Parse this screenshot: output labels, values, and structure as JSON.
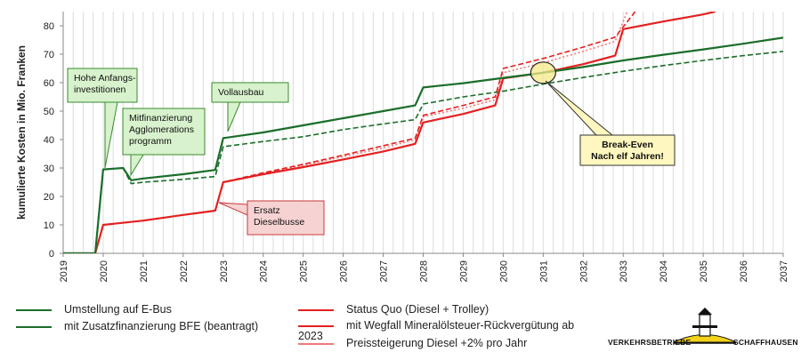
{
  "chart_data": {
    "type": "line",
    "ylabel": "kumulierte Kosten in Mio. Franken",
    "ylim": [
      0,
      85
    ],
    "yticks": [
      0,
      10,
      20,
      30,
      40,
      50,
      60,
      70,
      80
    ],
    "xlim": [
      2019,
      2037
    ],
    "xticks": [
      "2019",
      "2020",
      "2021",
      "2022",
      "2023",
      "2024",
      "2025",
      "2026",
      "2027",
      "2028",
      "2029",
      "2030",
      "2031",
      "2032",
      "2033",
      "2034",
      "2035",
      "2036",
      "2037"
    ],
    "grid": "vertical",
    "series": [
      {
        "name": "Umstellung auf E-Bus",
        "color": "#1a6e2a",
        "style": "solid",
        "points": [
          [
            2019,
            0
          ],
          [
            2019.8,
            0
          ],
          [
            2020.0,
            29.5
          ],
          [
            2020.5,
            30.0
          ],
          [
            2020.7,
            25.7
          ],
          [
            2021.0,
            26.3
          ],
          [
            2022.0,
            27.8
          ],
          [
            2022.8,
            29.3
          ],
          [
            2023.0,
            40.5
          ],
          [
            2024.0,
            42.5
          ],
          [
            2025.0,
            45.0
          ],
          [
            2026.0,
            47.5
          ],
          [
            2027.0,
            50.0
          ],
          [
            2027.8,
            52.0
          ],
          [
            2028.0,
            58.3
          ],
          [
            2029.0,
            59.8
          ],
          [
            2030.0,
            61.7
          ],
          [
            2031.0,
            63.5
          ],
          [
            2032.0,
            65.5
          ],
          [
            2033.0,
            67.8
          ],
          [
            2034.0,
            69.8
          ],
          [
            2035.0,
            71.7
          ],
          [
            2036.0,
            73.7
          ],
          [
            2037.0,
            75.8
          ]
        ]
      },
      {
        "name": "mit Zusatzfinanzierung BFE (beantragt)",
        "color": "#1a6e2a",
        "style": "dashed",
        "points": [
          [
            2019,
            0
          ],
          [
            2019.8,
            0
          ],
          [
            2020.0,
            29.5
          ],
          [
            2020.5,
            30.0
          ],
          [
            2020.7,
            24.5
          ],
          [
            2021.0,
            25.0
          ],
          [
            2022.0,
            26.0
          ],
          [
            2022.8,
            27.0
          ],
          [
            2023.0,
            37.5
          ],
          [
            2024.0,
            39.3
          ],
          [
            2025.0,
            41.0
          ],
          [
            2026.0,
            43.5
          ],
          [
            2027.0,
            45.5
          ],
          [
            2027.8,
            47.0
          ],
          [
            2028.0,
            52.5
          ],
          [
            2029.0,
            55.0
          ],
          [
            2030.0,
            57.0
          ],
          [
            2031.0,
            59.5
          ],
          [
            2032.0,
            61.8
          ],
          [
            2033.0,
            64.0
          ],
          [
            2034.0,
            66.0
          ],
          [
            2035.0,
            67.8
          ],
          [
            2036.0,
            69.5
          ],
          [
            2037.0,
            71.0
          ]
        ]
      },
      {
        "name": "Status Quo (Diesel + Trolley)",
        "color": "#e42020",
        "style": "solid",
        "points": [
          [
            2019,
            0
          ],
          [
            2019.8,
            0
          ],
          [
            2020.0,
            10.0
          ],
          [
            2021.0,
            11.5
          ],
          [
            2022.0,
            13.5
          ],
          [
            2022.8,
            15.0
          ],
          [
            2023.0,
            25.0
          ],
          [
            2024.0,
            27.8
          ],
          [
            2025.0,
            30.3
          ],
          [
            2026.0,
            33.0
          ],
          [
            2027.0,
            35.8
          ],
          [
            2027.8,
            38.5
          ],
          [
            2028.0,
            46.0
          ],
          [
            2029.0,
            49.0
          ],
          [
            2029.8,
            52.0
          ],
          [
            2030.0,
            61.5
          ],
          [
            2031.0,
            63.5
          ],
          [
            2032.0,
            66.5
          ],
          [
            2032.8,
            69.5
          ],
          [
            2033.0,
            78.8
          ],
          [
            2034.0,
            81.5
          ],
          [
            2035.0,
            84.0
          ],
          [
            2035.3,
            85.0
          ]
        ]
      },
      {
        "name": "mit Wegfall Mineralölsteuer-Rückvergütung ab 2023",
        "color": "#e42020",
        "style": "dashed",
        "points": [
          [
            2019,
            0
          ],
          [
            2019.8,
            0
          ],
          [
            2020.0,
            10.0
          ],
          [
            2021.0,
            11.5
          ],
          [
            2022.0,
            13.5
          ],
          [
            2022.8,
            15.0
          ],
          [
            2023.0,
            25.0
          ],
          [
            2024.0,
            28.3
          ],
          [
            2025.0,
            31.3
          ],
          [
            2026.0,
            34.5
          ],
          [
            2027.0,
            37.8
          ],
          [
            2027.8,
            40.5
          ],
          [
            2028.0,
            48.5
          ],
          [
            2029.0,
            52.0
          ],
          [
            2029.8,
            55.0
          ],
          [
            2030.0,
            65.0
          ],
          [
            2031.0,
            68.5
          ],
          [
            2032.0,
            72.5
          ],
          [
            2032.8,
            76.0
          ],
          [
            2033.3,
            85.0
          ]
        ]
      },
      {
        "name": "Preissteigerung Diesel +2% pro Jahr",
        "color": "#f07a7a",
        "style": "dotted",
        "points": [
          [
            2019,
            0
          ],
          [
            2019.8,
            0
          ],
          [
            2020.0,
            10.0
          ],
          [
            2021.0,
            11.5
          ],
          [
            2022.0,
            13.5
          ],
          [
            2022.8,
            15.0
          ],
          [
            2023.0,
            25.0
          ],
          [
            2024.0,
            28.0
          ],
          [
            2025.0,
            31.0
          ],
          [
            2026.0,
            34.0
          ],
          [
            2027.0,
            37.0
          ],
          [
            2027.8,
            40.0
          ],
          [
            2028.0,
            48.0
          ],
          [
            2029.0,
            51.0
          ],
          [
            2029.8,
            54.0
          ],
          [
            2030.0,
            63.5
          ],
          [
            2031.0,
            67.0
          ],
          [
            2032.0,
            71.0
          ],
          [
            2032.8,
            74.5
          ],
          [
            2033.1,
            85.0
          ]
        ]
      }
    ],
    "annotations": [
      {
        "id": "anfang",
        "lines": [
          "Hohe Anfangs-",
          "investitionen"
        ],
        "kind": "green",
        "at": [
          2020.0,
          30.0
        ]
      },
      {
        "id": "agglo",
        "lines": [
          "Mitfinanzierung",
          "Agglomerations",
          "programm"
        ],
        "kind": "green",
        "at": [
          2020.7,
          26.0
        ]
      },
      {
        "id": "ausbau",
        "lines": [
          "Vollausbau"
        ],
        "kind": "green",
        "at": [
          2023.1,
          41.0
        ]
      },
      {
        "id": "ersatz",
        "lines": [
          "Ersatz",
          "Dieselbusse"
        ],
        "kind": "red",
        "at": [
          2022.8,
          18.5
        ]
      },
      {
        "id": "break",
        "lines": [
          "Break-Even",
          "Nach elf Jahren!"
        ],
        "kind": "yellow",
        "at": [
          2031.0,
          63.5
        ]
      }
    ]
  },
  "logo": {
    "left": "VERKEHRSBETRIEBE",
    "right": "SCHAFFHAUSEN"
  }
}
